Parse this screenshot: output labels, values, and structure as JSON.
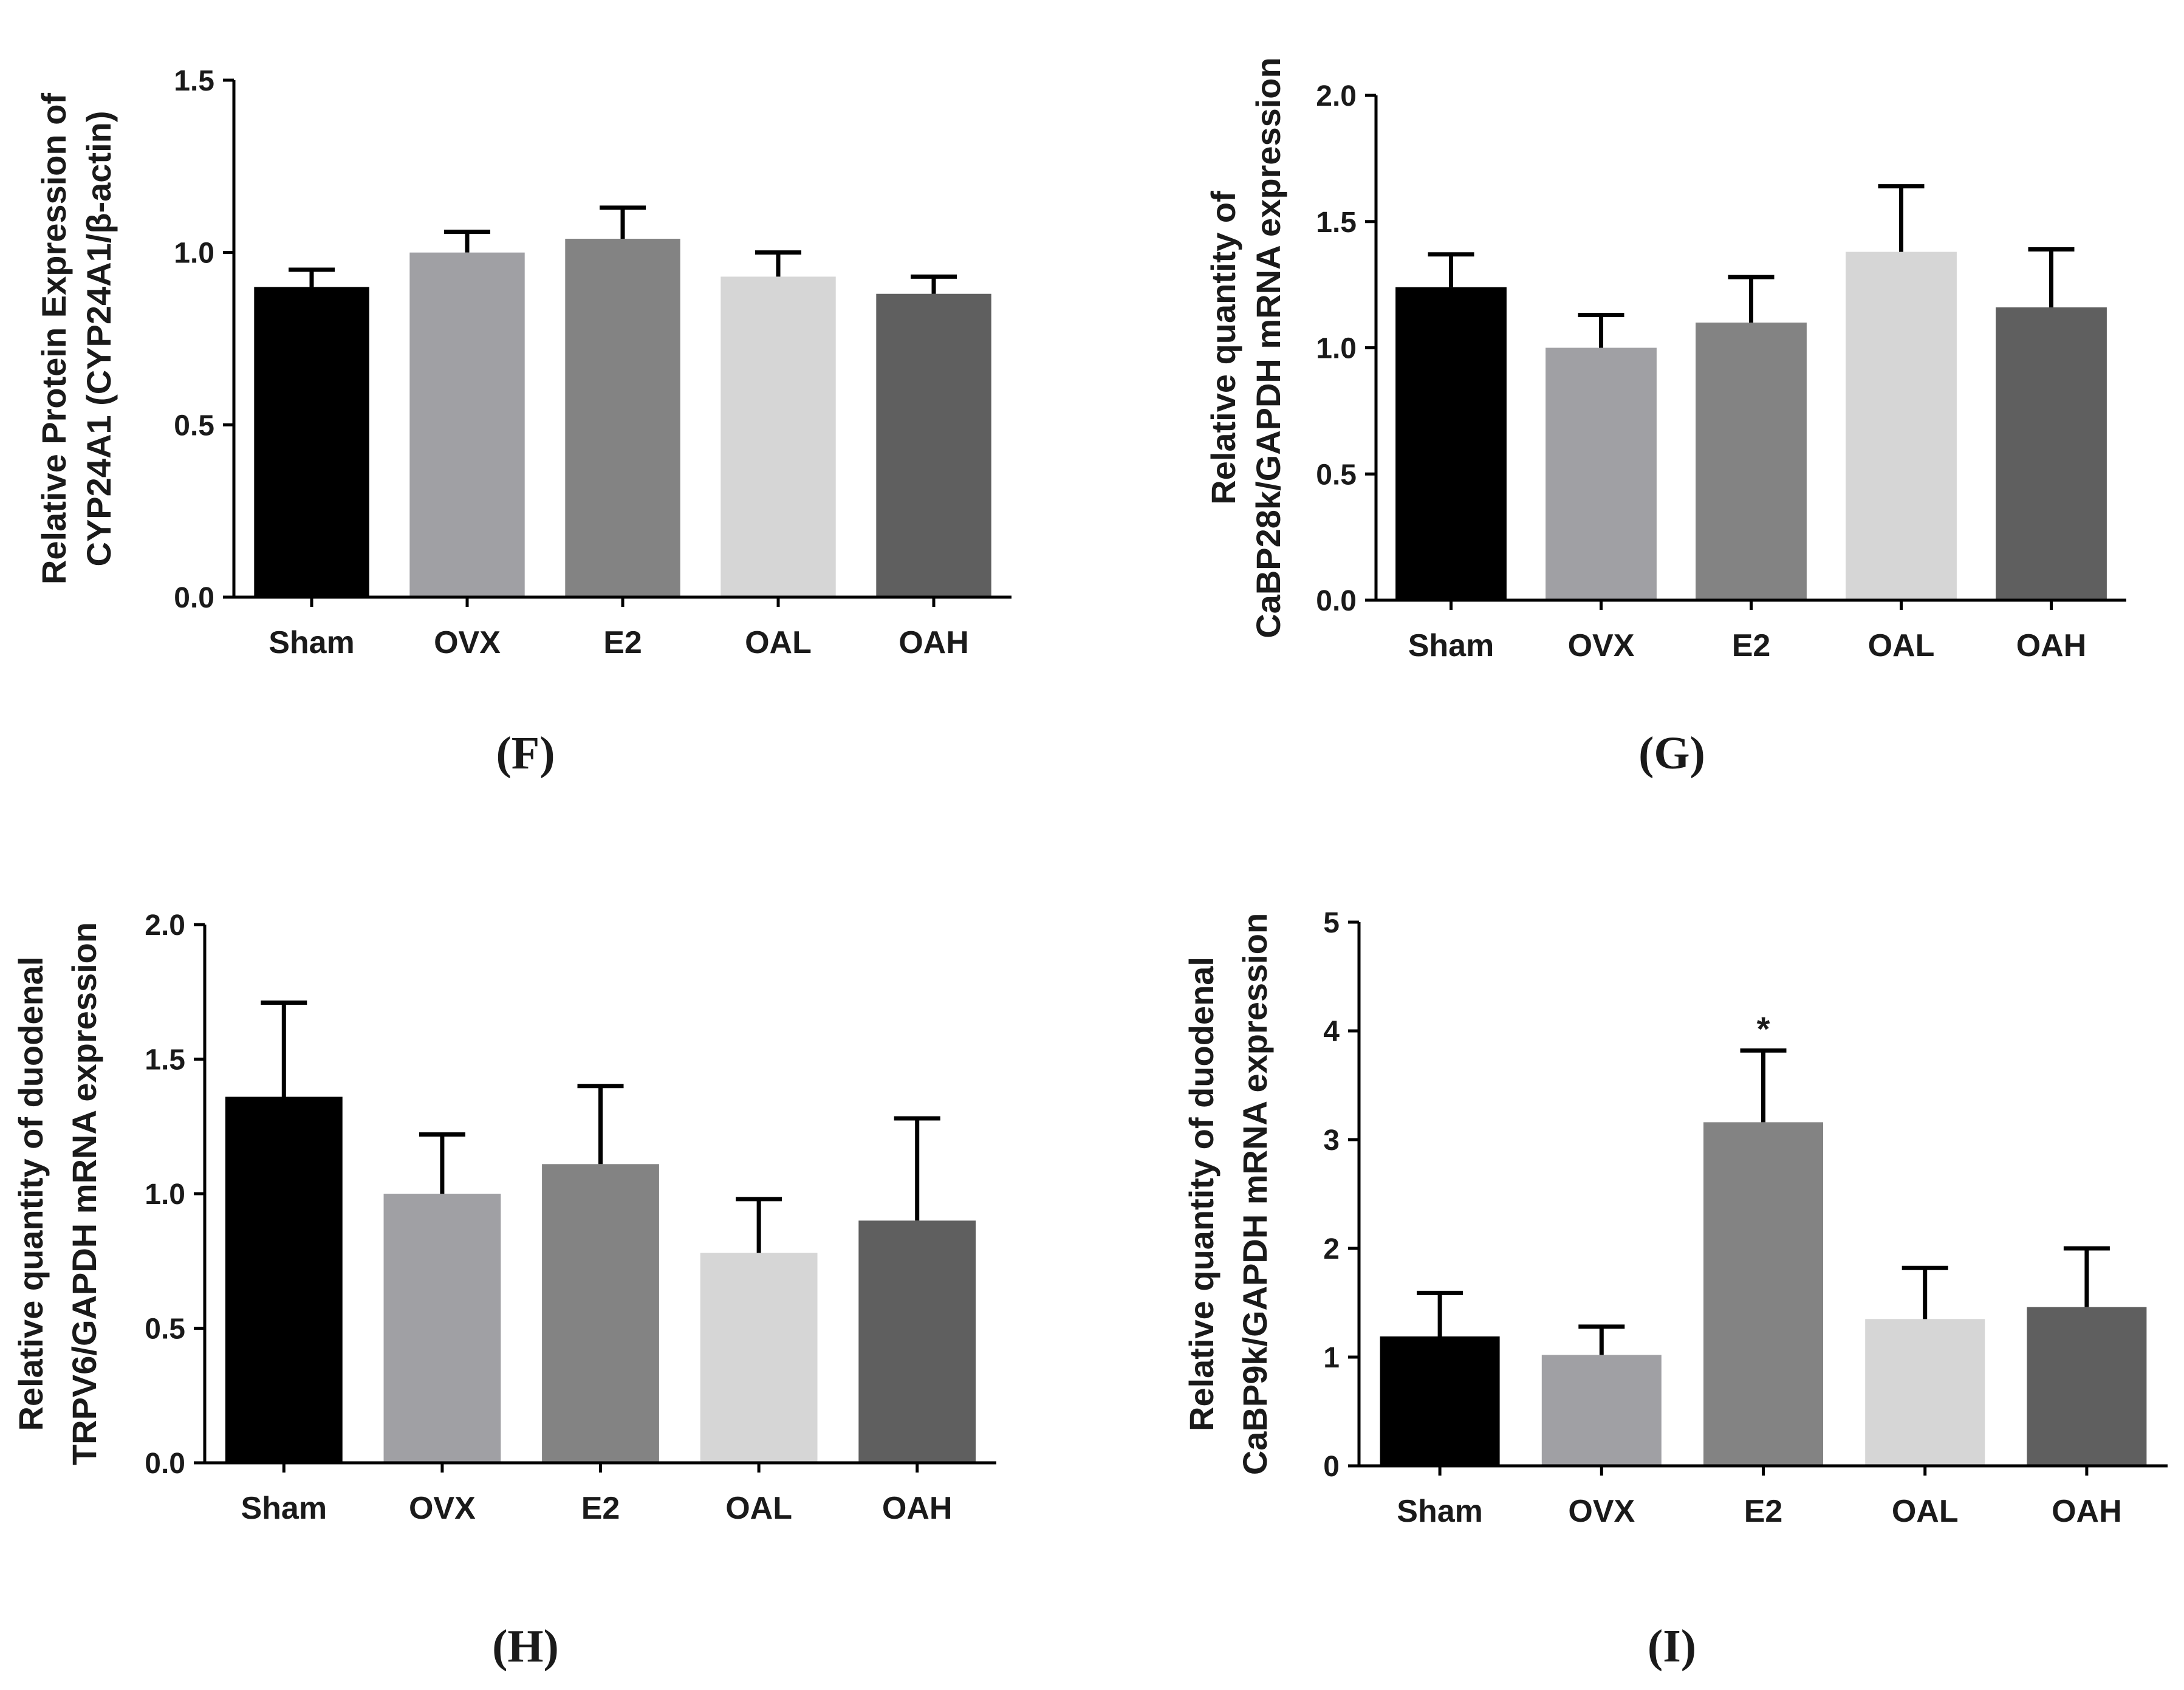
{
  "colors": {
    "Sham": "#000000",
    "OVX": "#a0a0a4",
    "E2": "#838383",
    "OAL": "#d6d6d6",
    "OAH": "#5f5f5f"
  },
  "chart_data": [
    {
      "type": "bar",
      "panel": "(F)",
      "ylabel": [
        "Relative Protein Expression of",
        "CYP24A1 (CYP24A1/β-actin)"
      ],
      "categories": [
        "Sham",
        "OVX",
        "E2",
        "OAL",
        "OAH"
      ],
      "values": [
        0.9,
        1.0,
        1.04,
        0.93,
        0.88
      ],
      "errors": [
        0.05,
        0.06,
        0.09,
        0.07,
        0.05
      ],
      "significance": [
        "",
        "",
        "",
        "",
        ""
      ],
      "ylim": [
        0,
        1.5
      ],
      "yticks": [
        "0.0",
        "0.5",
        "1.0",
        "1.5"
      ]
    },
    {
      "type": "bar",
      "panel": "(G)",
      "ylabel": [
        "Relative quantity of",
        "CaBP28k/GAPDH mRNA expression"
      ],
      "categories": [
        "Sham",
        "OVX",
        "E2",
        "OAL",
        "OAH"
      ],
      "values": [
        1.24,
        1.0,
        1.1,
        1.38,
        1.16
      ],
      "errors": [
        0.13,
        0.13,
        0.18,
        0.26,
        0.23
      ],
      "significance": [
        "",
        "",
        "",
        "",
        ""
      ],
      "ylim": [
        0,
        2.0
      ],
      "yticks": [
        "0.0",
        "0.5",
        "1.0",
        "1.5",
        "2.0"
      ]
    },
    {
      "type": "bar",
      "panel": "(H)",
      "ylabel": [
        "Relative quantity of duodenal",
        "TRPV6/GAPDH mRNA expression"
      ],
      "categories": [
        "Sham",
        "OVX",
        "E2",
        "OAL",
        "OAH"
      ],
      "values": [
        1.36,
        1.0,
        1.11,
        0.78,
        0.9
      ],
      "errors": [
        0.35,
        0.22,
        0.29,
        0.2,
        0.38
      ],
      "significance": [
        "",
        "",
        "",
        "",
        ""
      ],
      "ylim": [
        0,
        2.0
      ],
      "yticks": [
        "0.0",
        "0.5",
        "1.0",
        "1.5",
        "2.0"
      ]
    },
    {
      "type": "bar",
      "panel": "(I)",
      "ylabel": [
        "Relative quantity of duodenal",
        "CaBP9k/GAPDH mRNA expression"
      ],
      "categories": [
        "Sham",
        "OVX",
        "E2",
        "OAL",
        "OAH"
      ],
      "values": [
        1.19,
        1.02,
        3.16,
        1.35,
        1.46
      ],
      "errors": [
        0.4,
        0.26,
        0.66,
        0.47,
        0.54
      ],
      "significance": [
        "",
        "",
        "*",
        "",
        ""
      ],
      "ylim": [
        0,
        5
      ],
      "yticks": [
        "0",
        "1",
        "2",
        "3",
        "4",
        "5"
      ]
    }
  ]
}
